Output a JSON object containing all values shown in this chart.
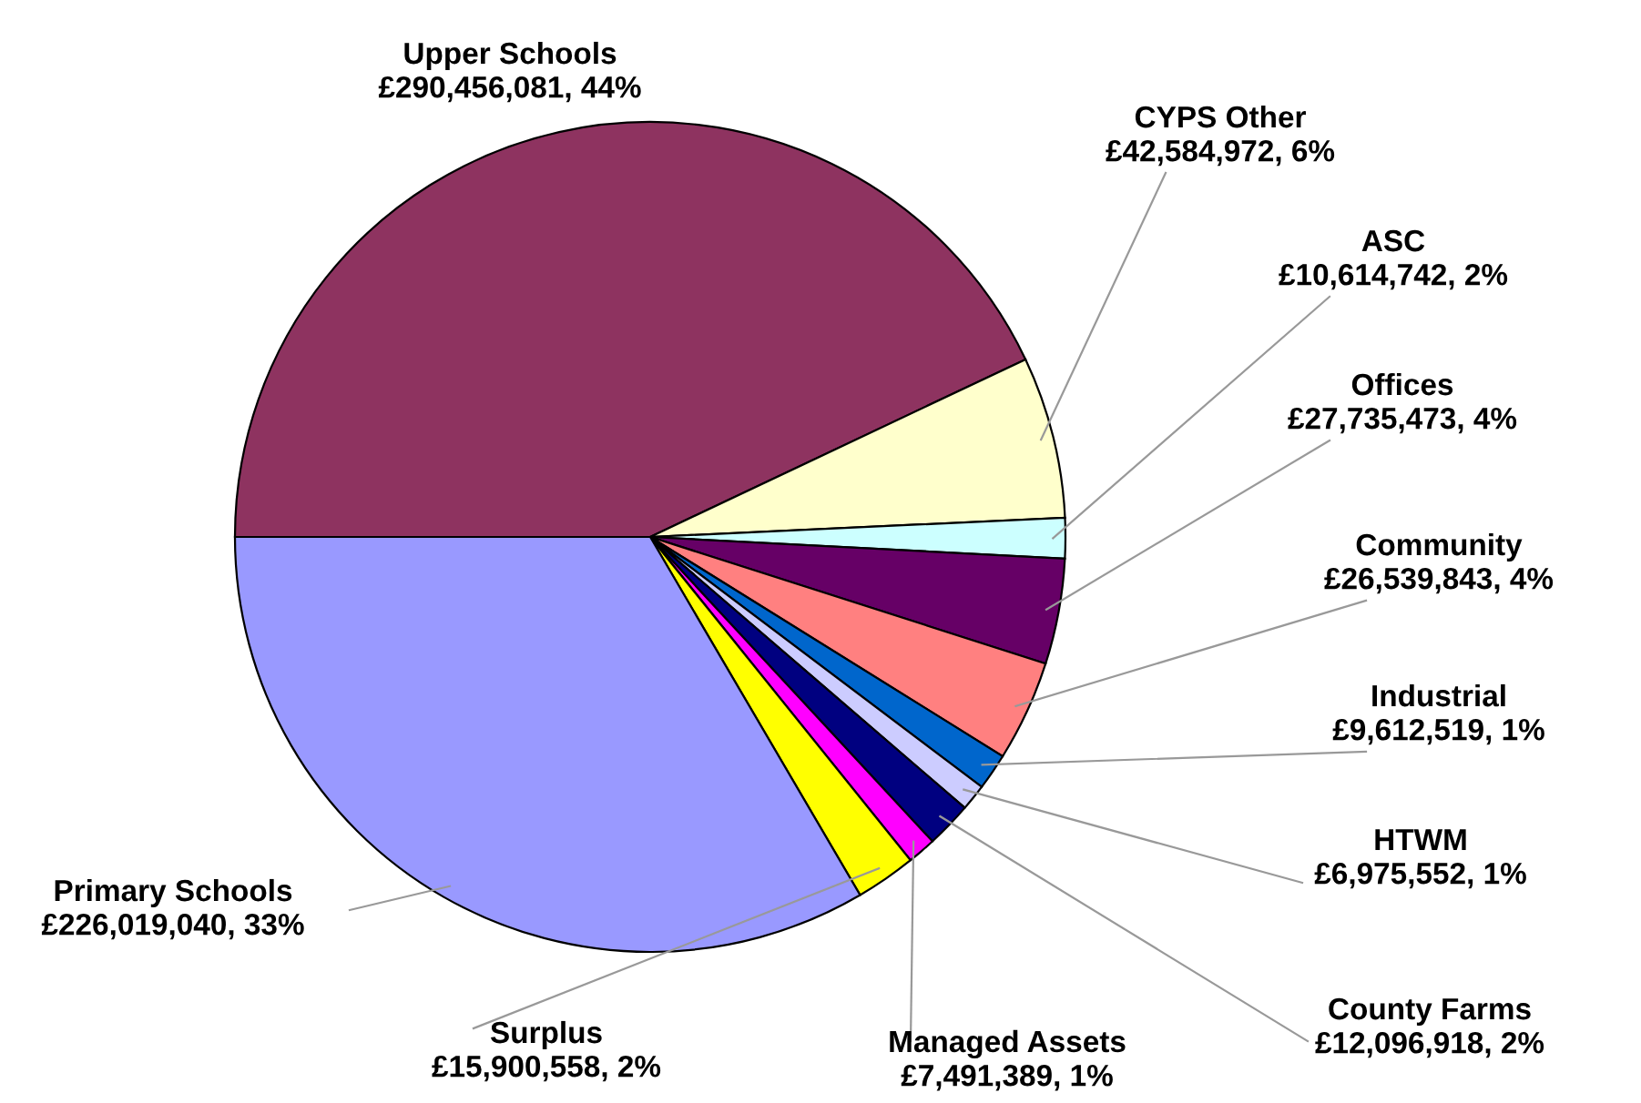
{
  "chart_data": {
    "type": "pie",
    "categories": [
      "Upper Schools",
      "CYPS Other",
      "ASC",
      "Offices",
      "Community",
      "Industrial",
      "HTWM",
      "County Farms",
      "Managed Assets",
      "Surplus",
      "Primary Schools"
    ],
    "values": [
      290456081,
      42584972,
      10614742,
      27735473,
      26539843,
      9612519,
      6975552,
      12096918,
      7491389,
      15900558,
      226019040
    ],
    "value_labels": [
      "£290,456,081, 44%",
      "£42,584,972, 6%",
      "£10,614,742, 2%",
      "£27,735,473, 4%",
      "£26,539,843, 4%",
      "£9,612,519, 1%",
      "£6,975,552, 1%",
      "£12,096,918, 2%",
      "£7,491,389, 1%",
      "£15,900,558, 2%",
      "£226,019,040, 33%"
    ],
    "colors": [
      "#8e3360",
      "#ffffcc",
      "#ccffff",
      "#660066",
      "#ff8080",
      "#0066cc",
      "#ccccff",
      "#000080",
      "#ff00ff",
      "#ffff00",
      "#9999ff"
    ],
    "legend": false
  }
}
